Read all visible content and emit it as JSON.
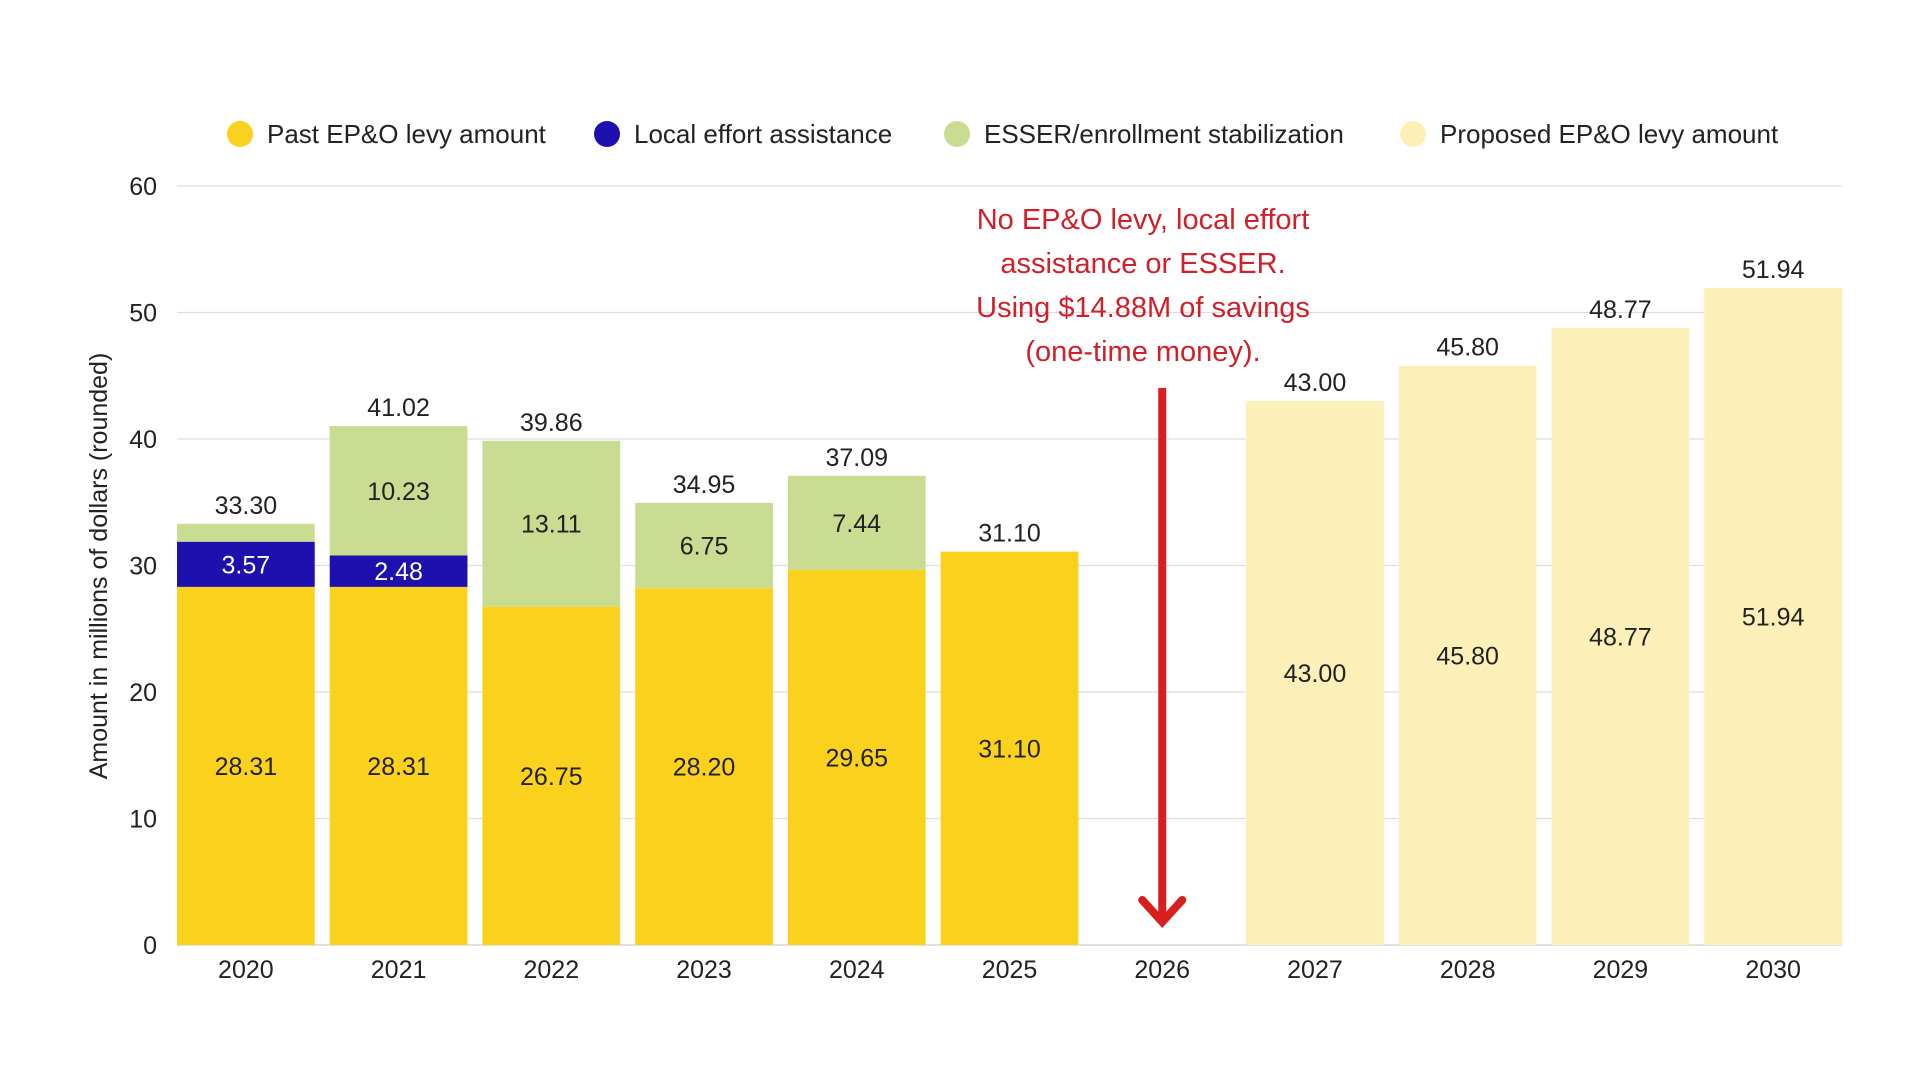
{
  "chart_data": {
    "type": "bar",
    "stacked": true,
    "title": "",
    "xlabel": "",
    "ylabel": "Amount in millions of dollars (rounded)",
    "ylim": [
      0,
      60
    ],
    "yticks": [
      0,
      10,
      20,
      30,
      40,
      50,
      60
    ],
    "grid": true,
    "legend_position": "top",
    "categories": [
      "2020",
      "2021",
      "2022",
      "2023",
      "2024",
      "2025",
      "2026",
      "2027",
      "2028",
      "2029",
      "2030"
    ],
    "series": [
      {
        "name": "Past EP&O levy amount",
        "color": "#FAD21E",
        "values": [
          28.31,
          28.31,
          26.75,
          28.2,
          29.65,
          31.1,
          0,
          0,
          0,
          0,
          0
        ],
        "labels": [
          "28.31",
          "28.31",
          "26.75",
          "28.20",
          "29.65",
          "31.10",
          "",
          "",
          "",
          "",
          ""
        ]
      },
      {
        "name": "Local effort assistance",
        "color": "#1E0FAF",
        "values": [
          3.57,
          2.48,
          0,
          0,
          0,
          0,
          0,
          0,
          0,
          0,
          0
        ],
        "labels": [
          "3.57",
          "2.48",
          "",
          "",
          "",
          "",
          "",
          "",
          "",
          "",
          ""
        ]
      },
      {
        "name": "ESSER/enrollment stabilization",
        "color": "#C9DC92",
        "values": [
          1.42,
          10.23,
          13.11,
          6.75,
          7.44,
          0,
          0,
          0,
          0,
          0,
          0
        ],
        "labels": [
          "",
          "10.23",
          "13.11",
          "6.75",
          "7.44",
          "",
          "",
          "",
          "",
          "",
          ""
        ]
      },
      {
        "name": "Proposed EP&O levy amount",
        "color": "#FCF0B8",
        "values": [
          0,
          0,
          0,
          0,
          0,
          0,
          0,
          43.0,
          45.8,
          48.77,
          51.94
        ],
        "labels": [
          "",
          "",
          "",
          "",
          "",
          "",
          "",
          "43.00",
          "45.80",
          "48.77",
          "51.94"
        ]
      }
    ],
    "totals": [
      "33.30",
      "41.02",
      "39.86",
      "34.95",
      "37.09",
      "31.10",
      "",
      "43.00",
      "45.80",
      "48.77",
      "51.94"
    ],
    "annotation": {
      "lines": [
        "No EP&O levy, local effort",
        "assistance or ESSER.",
        "Using $14.88M of savings",
        "(one-time money)."
      ],
      "color": "#D0202A",
      "category": "2026",
      "arrow": "down"
    }
  }
}
